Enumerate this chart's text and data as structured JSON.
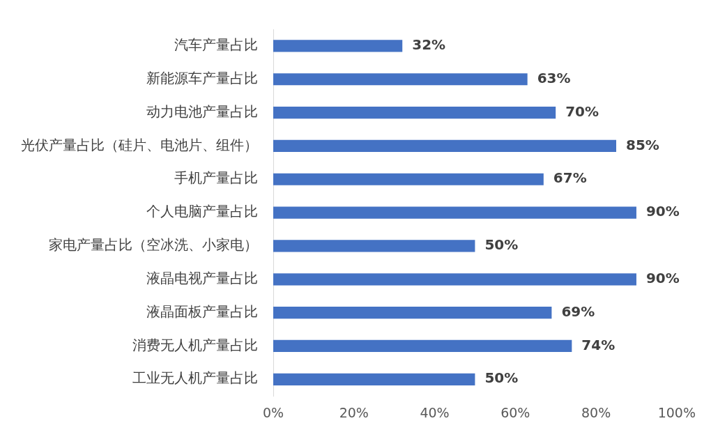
{
  "chart_data": {
    "type": "bar",
    "orientation": "horizontal",
    "categories": [
      "汽车产量占比",
      "新能源车产量占比",
      "动力电池产量占比",
      "光伏产量占比（硅片、电池片、组件）",
      "手机产量占比",
      "个人电脑产量占比",
      "家电产量占比（空冰洗、小家电）",
      "液晶电视产量占比",
      "液晶面板产量占比",
      "消费无人机产量占比",
      "工业无人机产量占比"
    ],
    "values": [
      32,
      63,
      70,
      85,
      67,
      90,
      50,
      90,
      69,
      74,
      50
    ],
    "value_labels": [
      "32%",
      "63%",
      "70%",
      "85%",
      "67%",
      "90%",
      "50%",
      "90%",
      "69%",
      "74%",
      "50%"
    ],
    "color": "#4472c4",
    "xlim": [
      0,
      100
    ],
    "xticks": [
      {
        "value": 0,
        "label": "0%"
      },
      {
        "value": 20,
        "label": "20%"
      },
      {
        "value": 40,
        "label": "40%"
      },
      {
        "value": 60,
        "label": "60%"
      },
      {
        "value": 80,
        "label": "80%"
      },
      {
        "value": 100,
        "label": "100%"
      }
    ],
    "grid": false,
    "legend": false
  }
}
